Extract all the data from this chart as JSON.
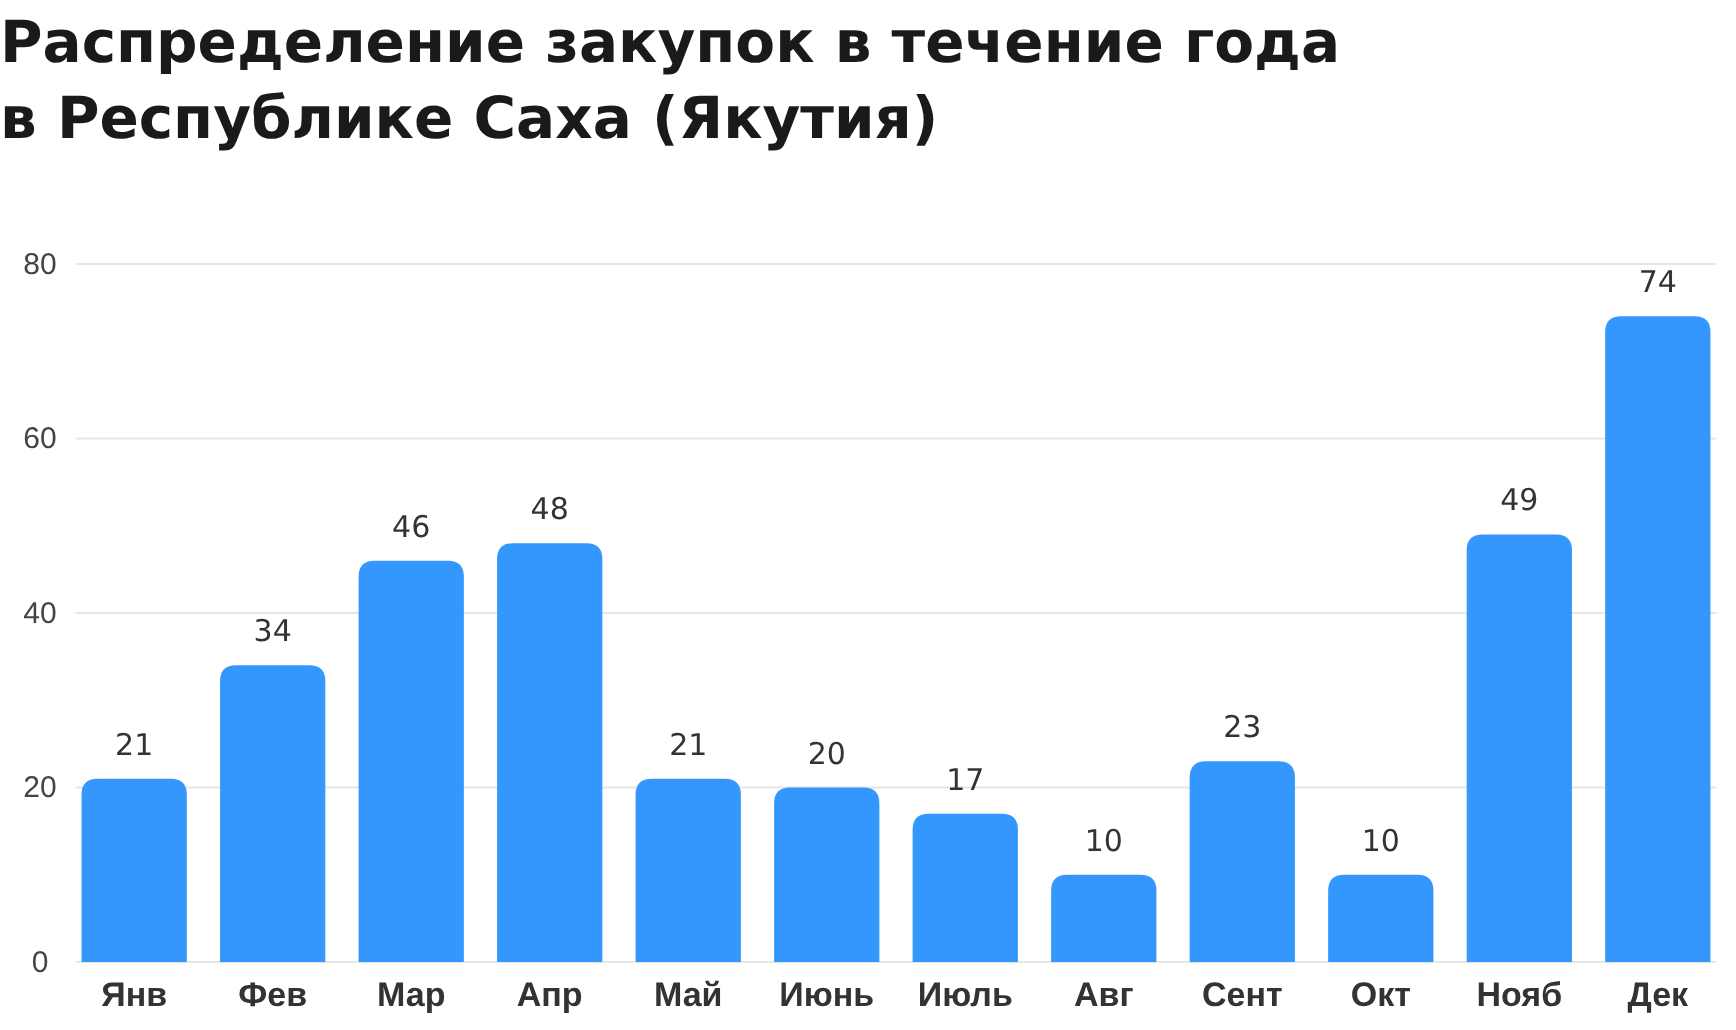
{
  "chart_data": {
    "type": "bar",
    "title": "Распределение закупок в течение года в Республике Саха (Якутия)",
    "categories": [
      "Янв",
      "Фев",
      "Мар",
      "Апр",
      "Май",
      "Июнь",
      "Июль",
      "Авг",
      "Сент",
      "Окт",
      "Нояб",
      "Дек"
    ],
    "values": [
      21,
      34,
      46,
      48,
      21,
      20,
      17,
      10,
      23,
      10,
      49,
      74
    ],
    "color": "#3497fd",
    "ylim": [
      0,
      80
    ],
    "yticks": [
      0,
      20,
      40,
      60,
      80
    ],
    "grid": "y",
    "data_labels": true
  }
}
